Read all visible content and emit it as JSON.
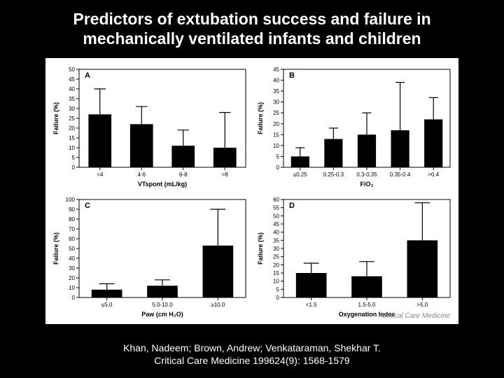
{
  "title": "Predictors of extubation success and failure in mechanically ventilated infants and children",
  "citation_line1": "Khan, Nadeem; Brown, Andrew; Venkataraman, Shekhar T.",
  "citation_line2": "Critical Care Medicine 199624(9): 1568-1579",
  "watermark": "Critical Care Medicine",
  "axis_font_size": 9,
  "tick_font_size": 8,
  "label_font_size": 9,
  "panel_label_font_size": 11,
  "bar_color": "#000000",
  "error_color": "#000000",
  "axis_color": "#000000",
  "background_color": "#ffffff",
  "panels": {
    "A": {
      "panel_label": "A",
      "ylabel": "Failure (%)",
      "xlabel": "VTspont (mL/kg)",
      "ylim": [
        0,
        50
      ],
      "ytick_step": 5,
      "categories": [
        "<4",
        "4-6",
        "6-8",
        ">8"
      ],
      "values": [
        27,
        22,
        11,
        10
      ],
      "errors": [
        13,
        9,
        8,
        18
      ]
    },
    "B": {
      "panel_label": "B",
      "ylabel": "Failure (%)",
      "xlabel": "FiO₂",
      "ylim": [
        0,
        45
      ],
      "ytick_step": 5,
      "categories": [
        "≤0.25",
        "0.25-0.3",
        "0.3-0.35",
        "0.35-0.4",
        ">0.4"
      ],
      "values": [
        5,
        13,
        15,
        17,
        22
      ],
      "errors": [
        4,
        5,
        10,
        22,
        10
      ]
    },
    "C": {
      "panel_label": "C",
      "ylabel": "Failure (%)",
      "xlabel": "Paw (cm H₂O)",
      "ylim": [
        0,
        100
      ],
      "ytick_step": 10,
      "categories": [
        "≤5.0",
        "5.0-10.0",
        "≥10.0"
      ],
      "values": [
        8,
        12,
        53
      ],
      "errors": [
        6,
        6,
        37
      ]
    },
    "D": {
      "panel_label": "D",
      "ylabel": "Failure (%)",
      "xlabel": "Oxygenation Index",
      "ylim": [
        0,
        60
      ],
      "ytick_step": 5,
      "categories": [
        "<1.5",
        "1.5-5.0",
        ">5.0"
      ],
      "values": [
        15,
        13,
        35
      ],
      "errors": [
        6,
        9,
        23
      ]
    }
  }
}
